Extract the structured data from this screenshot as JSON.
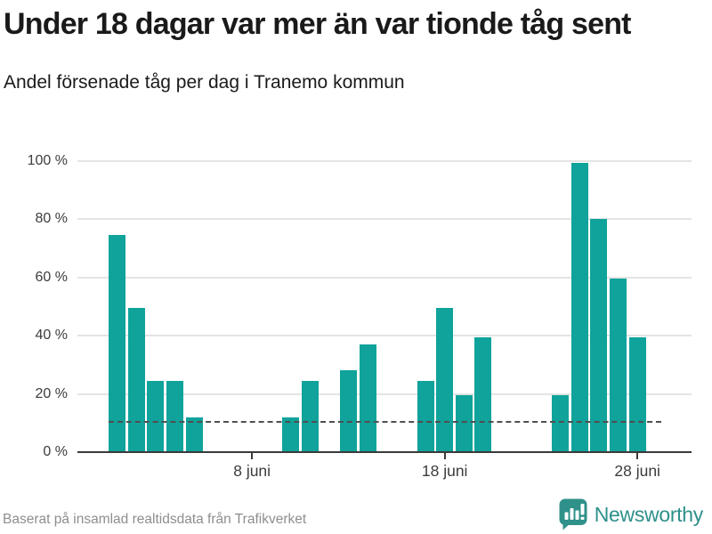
{
  "header": {
    "title": "Under 18 dagar var mer än var tionde tåg sent",
    "subtitle": "Andel försenade tåg per dag i Tranemo kommun"
  },
  "chart_data": {
    "type": "bar",
    "title": "Under 18 dagar var mer än var tionde tåg sent",
    "subtitle": "Andel försenade tåg per dag i Tranemo kommun",
    "x_unit": "dag i juni",
    "categories": [
      1,
      2,
      3,
      4,
      5,
      10,
      11,
      13,
      14,
      17,
      18,
      19,
      20,
      24,
      25,
      26,
      27,
      28
    ],
    "values": [
      74.5,
      49.5,
      24.5,
      24.5,
      12,
      12,
      24.5,
      28,
      37,
      24.5,
      49.5,
      19.5,
      39.5,
      19.5,
      99.5,
      80,
      59.5,
      39.5
    ],
    "value_unit": "%",
    "bar_color": "#0fa39b",
    "ylim": [
      0,
      100
    ],
    "grid": "horizontal-only",
    "y_ticks": [
      {
        "value": 0,
        "label": "0 %"
      },
      {
        "value": 20,
        "label": "20 %"
      },
      {
        "value": 40,
        "label": "40 %"
      },
      {
        "value": 60,
        "label": "60 %"
      },
      {
        "value": 80,
        "label": "80 %"
      },
      {
        "value": 100,
        "label": "100 %"
      }
    ],
    "x_ticks": [
      {
        "day": 8,
        "label": "8 juni"
      },
      {
        "day": 18,
        "label": "18 juni"
      },
      {
        "day": 28,
        "label": "28 juni"
      }
    ],
    "reference_line": {
      "value": 10,
      "style": "dashed",
      "color": "#4f4f4f"
    }
  },
  "footer": {
    "source": "Baserat på insamlad realtidsdata från Trafikverket",
    "brand": {
      "name": "Newsworthy",
      "color": "#2e908a",
      "icon": "newsworthy-speech-bubble-chart"
    }
  }
}
